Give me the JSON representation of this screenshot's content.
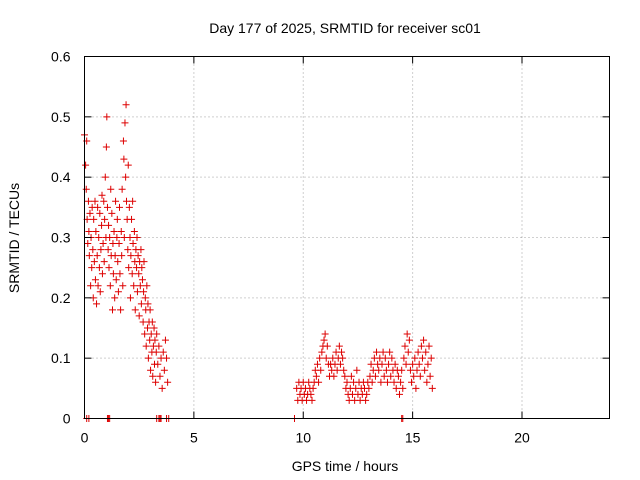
{
  "chart_data": {
    "type": "scatter",
    "title": "Day 177 of 2025, SRMTID for receiver sc01",
    "xlabel": "GPS time / hours",
    "ylabel": "SRMTID / TECUs",
    "xlim": [
      0,
      24
    ],
    "ylim": [
      0,
      0.6
    ],
    "xticks": [
      0,
      5,
      10,
      15,
      20
    ],
    "yticks": [
      0,
      0.1,
      0.2,
      0.3,
      0.4,
      0.5,
      0.6
    ],
    "xtick_labels": [
      "0",
      "5",
      "10",
      "15",
      "20"
    ],
    "ytick_labels": [
      "0",
      "0.1",
      "0.2",
      "0.3",
      "0.4",
      "0.5",
      "0.6"
    ],
    "grid": true,
    "marker": "plus",
    "series_color": "#dd0000",
    "series": [
      {
        "name": "SRMTID",
        "points": [
          [
            0.0,
            0.47
          ],
          [
            0.05,
            0.42
          ],
          [
            0.08,
            0.38
          ],
          [
            0.1,
            0.46
          ],
          [
            0.12,
            0.33
          ],
          [
            0.15,
            0.29
          ],
          [
            0.18,
            0.36
          ],
          [
            0.2,
            0.31
          ],
          [
            0.22,
            0.27
          ],
          [
            0.25,
            0.34
          ],
          [
            0.28,
            0.22
          ],
          [
            0.3,
            0.3
          ],
          [
            0.33,
            0.25
          ],
          [
            0.35,
            0.35
          ],
          [
            0.38,
            0.28
          ],
          [
            0.4,
            0.2
          ],
          [
            0.42,
            0.33
          ],
          [
            0.45,
            0.26
          ],
          [
            0.48,
            0.36
          ],
          [
            0.5,
            0.23
          ],
          [
            0.52,
            0.31
          ],
          [
            0.55,
            0.19
          ],
          [
            0.58,
            0.27
          ],
          [
            0.6,
            0.35
          ],
          [
            0.62,
            0.22
          ],
          [
            0.65,
            0.3
          ],
          [
            0.68,
            0.25
          ],
          [
            0.7,
            0.34
          ],
          [
            0.72,
            0.21
          ],
          [
            0.75,
            0.28
          ],
          [
            0.78,
            0.32
          ],
          [
            0.8,
            0.37
          ],
          [
            0.82,
            0.24
          ],
          [
            0.85,
            0.29
          ],
          [
            0.88,
            0.36
          ],
          [
            0.9,
            0.26
          ],
          [
            0.92,
            0.33
          ],
          [
            0.95,
            0.4
          ],
          [
            0.98,
            0.3
          ],
          [
            1.0,
            0.45
          ],
          [
            1.02,
            0.5
          ],
          [
            1.05,
            0.35
          ],
          [
            1.08,
            0.28
          ],
          [
            1.1,
            0.32
          ],
          [
            1.12,
            0.25
          ],
          [
            1.15,
            0.3
          ],
          [
            1.18,
            0.22
          ],
          [
            1.2,
            0.38
          ],
          [
            1.22,
            0.27
          ],
          [
            1.25,
            0.34
          ],
          [
            1.28,
            0.18
          ],
          [
            1.3,
            0.29
          ],
          [
            1.32,
            0.24
          ],
          [
            1.35,
            0.31
          ],
          [
            1.38,
            0.2
          ],
          [
            1.4,
            0.27
          ],
          [
            1.42,
            0.36
          ],
          [
            1.45,
            0.23
          ],
          [
            1.48,
            0.3
          ],
          [
            1.5,
            0.33
          ],
          [
            1.52,
            0.26
          ],
          [
            1.55,
            0.21
          ],
          [
            1.58,
            0.29
          ],
          [
            1.6,
            0.35
          ],
          [
            1.62,
            0.24
          ],
          [
            1.65,
            0.18
          ],
          [
            1.68,
            0.31
          ],
          [
            1.7,
            0.27
          ],
          [
            1.72,
            0.38
          ],
          [
            1.75,
            0.22
          ],
          [
            1.78,
            0.46
          ],
          [
            1.8,
            0.43
          ],
          [
            1.82,
            0.3
          ],
          [
            1.85,
            0.49
          ],
          [
            1.88,
            0.4
          ],
          [
            1.9,
            0.52
          ],
          [
            1.92,
            0.36
          ],
          [
            1.95,
            0.33
          ],
          [
            1.98,
            0.28
          ],
          [
            2.0,
            0.42
          ],
          [
            2.02,
            0.25
          ],
          [
            2.05,
            0.35
          ],
          [
            2.08,
            0.3
          ],
          [
            2.1,
            0.2
          ],
          [
            2.12,
            0.27
          ],
          [
            2.15,
            0.33
          ],
          [
            2.18,
            0.24
          ],
          [
            2.2,
            0.36
          ],
          [
            2.22,
            0.29
          ],
          [
            2.25,
            0.22
          ],
          [
            2.28,
            0.31
          ],
          [
            2.3,
            0.26
          ],
          [
            2.32,
            0.18
          ],
          [
            2.35,
            0.28
          ],
          [
            2.38,
            0.25
          ],
          [
            2.4,
            0.3
          ],
          [
            2.42,
            0.21
          ],
          [
            2.45,
            0.27
          ],
          [
            2.48,
            0.24
          ],
          [
            2.5,
            0.17
          ],
          [
            2.52,
            0.26
          ],
          [
            2.55,
            0.22
          ],
          [
            2.58,
            0.28
          ],
          [
            2.6,
            0.19
          ],
          [
            2.62,
            0.25
          ],
          [
            2.65,
            0.23
          ],
          [
            2.68,
            0.16
          ],
          [
            2.7,
            0.21
          ],
          [
            2.72,
            0.26
          ],
          [
            2.75,
            0.14
          ],
          [
            2.78,
            0.2
          ],
          [
            2.8,
            0.18
          ],
          [
            2.82,
            0.12
          ],
          [
            2.85,
            0.22
          ],
          [
            2.88,
            0.15
          ],
          [
            2.9,
            0.19
          ],
          [
            2.92,
            0.1
          ],
          [
            2.95,
            0.16
          ],
          [
            2.98,
            0.13
          ],
          [
            3.0,
            0.18
          ],
          [
            3.02,
            0.08
          ],
          [
            3.05,
            0.14
          ],
          [
            3.08,
            0.11
          ],
          [
            3.1,
            0.16
          ],
          [
            3.12,
            0.07
          ],
          [
            3.15,
            0.12
          ],
          [
            3.18,
            0.15
          ],
          [
            3.2,
            0.09
          ],
          [
            3.22,
            0.13
          ],
          [
            3.25,
            0.06
          ],
          [
            3.28,
            0.11
          ],
          [
            3.3,
            0.14
          ],
          [
            3.35,
            0.09
          ],
          [
            3.4,
            0.12
          ],
          [
            3.45,
            0.07
          ],
          [
            3.5,
            0.1
          ],
          [
            3.55,
            0.05
          ],
          [
            3.6,
            0.11
          ],
          [
            3.65,
            0.08
          ],
          [
            3.7,
            0.13
          ],
          [
            3.75,
            0.1
          ],
          [
            3.8,
            0.06
          ],
          [
            9.7,
            0.05
          ],
          [
            9.75,
            0.03
          ],
          [
            9.8,
            0.06
          ],
          [
            9.85,
            0.04
          ],
          [
            9.9,
            0.05
          ],
          [
            9.95,
            0.03
          ],
          [
            10.0,
            0.06
          ],
          [
            10.05,
            0.04
          ],
          [
            10.1,
            0.05
          ],
          [
            10.15,
            0.03
          ],
          [
            10.2,
            0.04
          ],
          [
            10.25,
            0.06
          ],
          [
            10.3,
            0.05
          ],
          [
            10.35,
            0.04
          ],
          [
            10.4,
            0.03
          ],
          [
            10.45,
            0.05
          ],
          [
            10.5,
            0.06
          ],
          [
            10.55,
            0.08
          ],
          [
            10.6,
            0.07
          ],
          [
            10.65,
            0.09
          ],
          [
            10.7,
            0.06
          ],
          [
            10.75,
            0.1
          ],
          [
            10.8,
            0.08
          ],
          [
            10.85,
            0.11
          ],
          [
            10.9,
            0.12
          ],
          [
            10.95,
            0.13
          ],
          [
            11.0,
            0.14
          ],
          [
            11.05,
            0.1
          ],
          [
            11.1,
            0.12
          ],
          [
            11.15,
            0.09
          ],
          [
            11.2,
            0.07
          ],
          [
            11.25,
            0.09
          ],
          [
            11.3,
            0.08
          ],
          [
            11.35,
            0.1
          ],
          [
            11.4,
            0.07
          ],
          [
            11.45,
            0.09
          ],
          [
            11.5,
            0.11
          ],
          [
            11.55,
            0.08
          ],
          [
            11.6,
            0.1
          ],
          [
            11.65,
            0.12
          ],
          [
            11.7,
            0.09
          ],
          [
            11.75,
            0.11
          ],
          [
            11.8,
            0.1
          ],
          [
            11.85,
            0.08
          ],
          [
            11.9,
            0.07
          ],
          [
            11.95,
            0.05
          ],
          [
            12.0,
            0.06
          ],
          [
            12.05,
            0.04
          ],
          [
            12.1,
            0.03
          ],
          [
            12.15,
            0.05
          ],
          [
            12.2,
            0.07
          ],
          [
            12.25,
            0.04
          ],
          [
            12.3,
            0.06
          ],
          [
            12.35,
            0.03
          ],
          [
            12.4,
            0.05
          ],
          [
            12.45,
            0.08
          ],
          [
            12.5,
            0.04
          ],
          [
            12.55,
            0.06
          ],
          [
            12.6,
            0.03
          ],
          [
            12.65,
            0.05
          ],
          [
            12.7,
            0.04
          ],
          [
            12.75,
            0.06
          ],
          [
            12.8,
            0.05
          ],
          [
            12.85,
            0.03
          ],
          [
            12.9,
            0.04
          ],
          [
            12.95,
            0.06
          ],
          [
            13.0,
            0.05
          ],
          [
            13.05,
            0.07
          ],
          [
            13.1,
            0.09
          ],
          [
            13.15,
            0.06
          ],
          [
            13.2,
            0.08
          ],
          [
            13.25,
            0.1
          ],
          [
            13.3,
            0.07
          ],
          [
            13.35,
            0.11
          ],
          [
            13.4,
            0.09
          ],
          [
            13.45,
            0.08
          ],
          [
            13.5,
            0.1
          ],
          [
            13.55,
            0.06
          ],
          [
            13.6,
            0.09
          ],
          [
            13.65,
            0.11
          ],
          [
            13.7,
            0.07
          ],
          [
            13.75,
            0.1
          ],
          [
            13.8,
            0.08
          ],
          [
            13.85,
            0.06
          ],
          [
            13.9,
            0.09
          ],
          [
            13.95,
            0.11
          ],
          [
            14.0,
            0.07
          ],
          [
            14.05,
            0.1
          ],
          [
            14.1,
            0.08
          ],
          [
            14.15,
            0.06
          ],
          [
            14.2,
            0.09
          ],
          [
            14.25,
            0.05
          ],
          [
            14.3,
            0.08
          ],
          [
            14.35,
            0.07
          ],
          [
            14.4,
            0.04
          ],
          [
            14.45,
            0.06
          ],
          [
            14.5,
            0.08
          ],
          [
            14.55,
            0.05
          ],
          [
            14.6,
            0.1
          ],
          [
            14.65,
            0.12
          ],
          [
            14.7,
            0.09
          ],
          [
            14.75,
            0.14
          ],
          [
            14.8,
            0.11
          ],
          [
            14.85,
            0.13
          ],
          [
            14.9,
            0.08
          ],
          [
            14.95,
            0.06
          ],
          [
            15.0,
            0.09
          ],
          [
            15.05,
            0.07
          ],
          [
            15.1,
            0.1
          ],
          [
            15.15,
            0.05
          ],
          [
            15.2,
            0.08
          ],
          [
            15.25,
            0.11
          ],
          [
            15.3,
            0.09
          ],
          [
            15.35,
            0.07
          ],
          [
            15.4,
            0.12
          ],
          [
            15.45,
            0.1
          ],
          [
            15.5,
            0.13
          ],
          [
            15.55,
            0.08
          ],
          [
            15.6,
            0.11
          ],
          [
            15.65,
            0.06
          ],
          [
            15.7,
            0.09
          ],
          [
            15.75,
            0.12
          ],
          [
            15.8,
            0.07
          ],
          [
            15.85,
            0.1
          ],
          [
            15.9,
            0.05
          ]
        ],
        "zero_points": [
          0.1,
          0.2,
          1.05,
          1.1,
          1.15,
          3.3,
          3.4,
          3.45,
          3.5,
          3.75,
          3.85,
          9.6,
          14.5,
          14.55
        ]
      }
    ]
  }
}
